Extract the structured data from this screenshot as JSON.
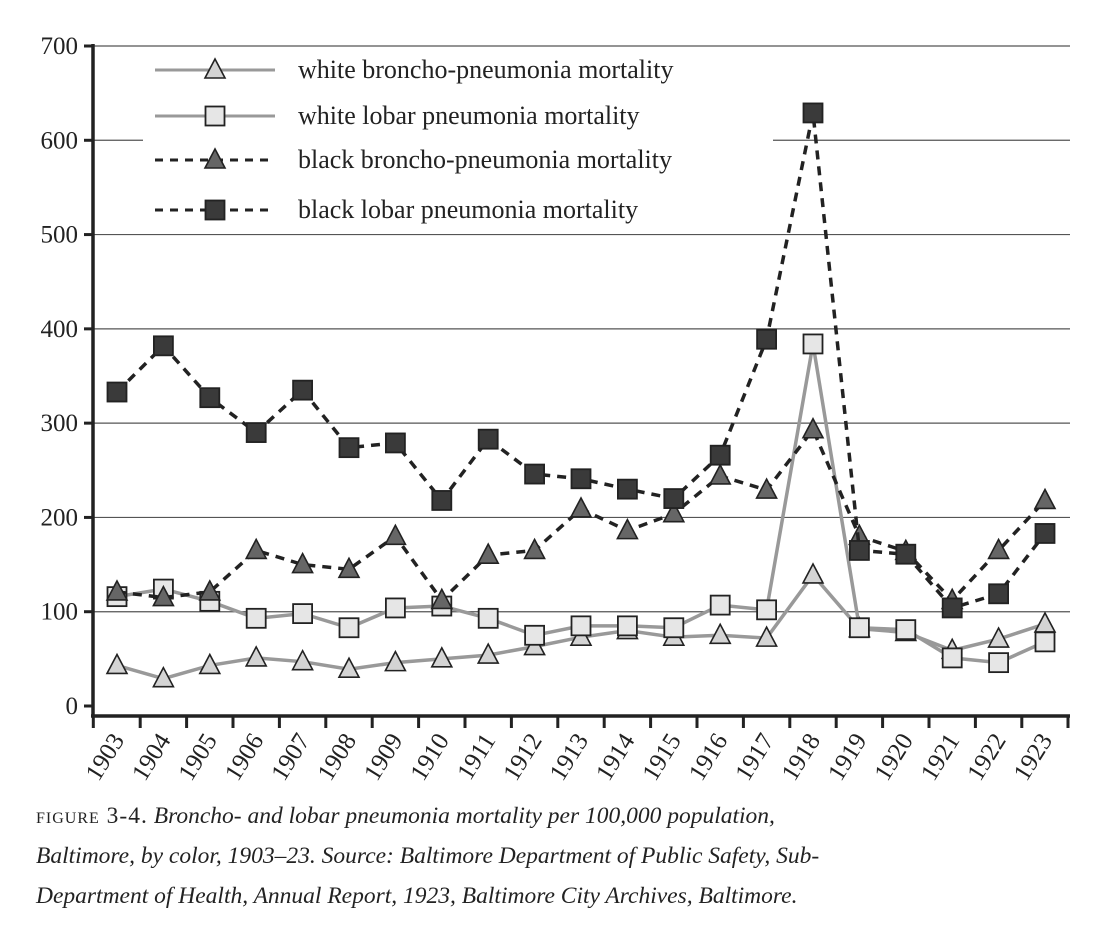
{
  "chart_data": {
    "type": "line",
    "title": "",
    "xlabel": "",
    "ylabel": "",
    "ylim": [
      0,
      700
    ],
    "yticks": [
      "0",
      "100",
      "200",
      "300",
      "400",
      "500",
      "600",
      "700"
    ],
    "categories": [
      "1903",
      "1904",
      "1905",
      "1906",
      "1907",
      "1908",
      "1909",
      "1910",
      "1911",
      "1912",
      "1913",
      "1914",
      "1915",
      "1916",
      "1917",
      "1918",
      "1919",
      "1920",
      "1921",
      "1922",
      "1923"
    ],
    "grid": true,
    "legend_position": "top-left",
    "series": [
      {
        "name": "white broncho-pneumonia mortality",
        "marker": "triangle",
        "style": "solid",
        "line_color": "#999999",
        "fill": "#d4d4d4",
        "values": [
          43,
          29,
          43,
          51,
          47,
          39,
          46,
          50,
          54,
          63,
          73,
          80,
          73,
          75,
          72,
          139,
          82,
          78,
          59,
          71,
          87
        ]
      },
      {
        "name": "white lobar pneumonia mortality",
        "marker": "square",
        "style": "solid",
        "line_color": "#999999",
        "fill": "#e6e6e6",
        "values": [
          116,
          124,
          111,
          93,
          98,
          83,
          104,
          106,
          93,
          75,
          85,
          85,
          83,
          107,
          102,
          384,
          83,
          81,
          51,
          46,
          68
        ]
      },
      {
        "name": "black broncho-pneumonia mortality",
        "marker": "triangle",
        "style": "dashed",
        "line_color": "#222222",
        "fill": "#666666",
        "values": [
          121,
          115,
          121,
          165,
          150,
          145,
          180,
          112,
          160,
          165,
          209,
          186,
          204,
          244,
          229,
          293,
          180,
          164,
          112,
          165,
          218
        ]
      },
      {
        "name": "black lobar pneumonia mortality",
        "marker": "square",
        "style": "dashed",
        "line_color": "#222222",
        "fill": "#3a3a3a",
        "values": [
          333,
          382,
          327,
          290,
          335,
          274,
          279,
          218,
          283,
          246,
          241,
          230,
          220,
          266,
          389,
          629,
          165,
          161,
          104,
          119,
          183
        ]
      }
    ]
  },
  "caption": {
    "label": "figure 3-4.",
    "lines": [
      "Broncho- and lobar pneumonia mortality per 100,000 population,",
      "Baltimore, by color, 1903–23. Source: Baltimore Department of Public Safety, Sub-",
      "Department of Health, Annual Report, 1923, Baltimore City Archives, Baltimore."
    ]
  }
}
